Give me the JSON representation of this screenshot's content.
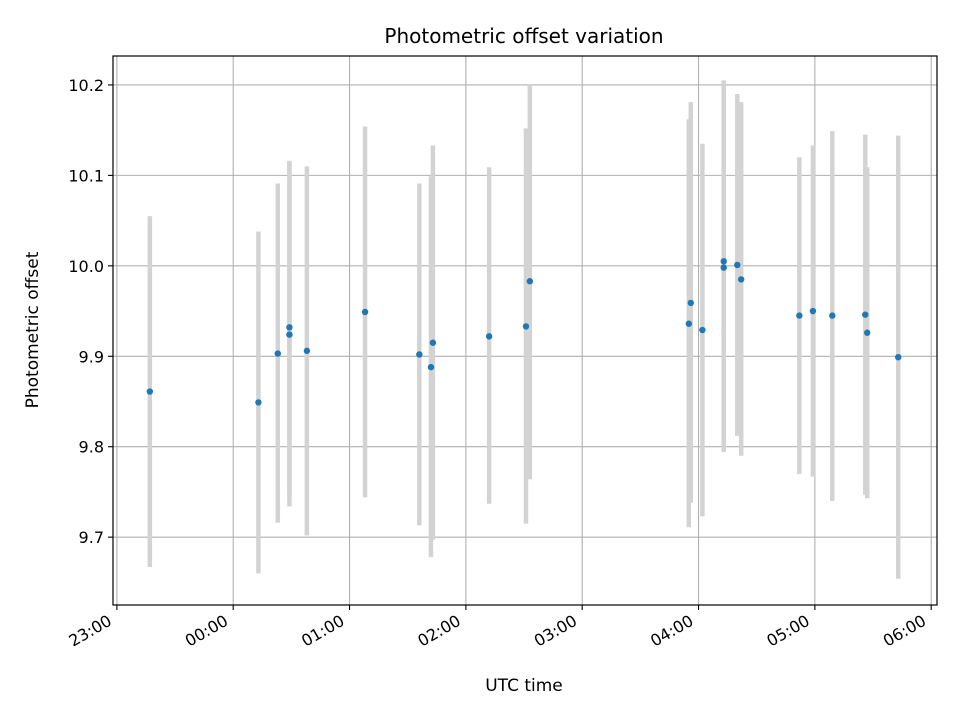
{
  "chart_data": {
    "type": "scatter",
    "title": "Photometric offset variation",
    "xlabel": "UTC time",
    "ylabel": "Photometric offset",
    "x_axis_type": "time",
    "xlim": [
      "22:58",
      "06:03"
    ],
    "ylim": [
      9.625,
      10.232
    ],
    "x_ticks": [
      "23:00",
      "00:00",
      "01:00",
      "02:00",
      "03:00",
      "04:00",
      "05:00",
      "06:00"
    ],
    "y_ticks": [
      9.7,
      9.8,
      9.9,
      10.0,
      10.1,
      10.2
    ],
    "grid": true,
    "legend": "none",
    "colors": {
      "marker": "#1f77b4",
      "errorbar": "#d3d3d3",
      "grid": "#b0b0b0"
    },
    "points": [
      {
        "x": "23:17",
        "y": 9.861,
        "ylow": 9.667,
        "yhigh": 10.055
      },
      {
        "x": "00:13",
        "y": 9.849,
        "ylow": 9.66,
        "yhigh": 10.038
      },
      {
        "x": "00:23",
        "y": 9.903,
        "ylow": 9.716,
        "yhigh": 10.091
      },
      {
        "x": "00:29",
        "y": 9.924,
        "ylow": 9.734,
        "yhigh": 10.114
      },
      {
        "x": "00:29",
        "y": 9.932,
        "ylow": 9.747,
        "yhigh": 10.116
      },
      {
        "x": "00:38",
        "y": 9.906,
        "ylow": 9.702,
        "yhigh": 10.11
      },
      {
        "x": "01:08",
        "y": 9.949,
        "ylow": 9.744,
        "yhigh": 10.154
      },
      {
        "x": "01:36",
        "y": 9.902,
        "ylow": 9.713,
        "yhigh": 10.091
      },
      {
        "x": "01:42",
        "y": 9.888,
        "ylow": 9.678,
        "yhigh": 10.099
      },
      {
        "x": "01:43",
        "y": 9.915,
        "ylow": 9.697,
        "yhigh": 10.133
      },
      {
        "x": "02:12",
        "y": 9.922,
        "ylow": 9.737,
        "yhigh": 10.109
      },
      {
        "x": "02:31",
        "y": 9.933,
        "ylow": 9.715,
        "yhigh": 10.152
      },
      {
        "x": "02:33",
        "y": 9.983,
        "ylow": 9.764,
        "yhigh": 10.201
      },
      {
        "x": "03:55",
        "y": 9.936,
        "ylow": 9.711,
        "yhigh": 10.162
      },
      {
        "x": "03:56",
        "y": 9.959,
        "ylow": 9.738,
        "yhigh": 10.181
      },
      {
        "x": "04:02",
        "y": 9.929,
        "ylow": 9.723,
        "yhigh": 10.135
      },
      {
        "x": "04:13",
        "y": 9.998,
        "ylow": 9.794,
        "yhigh": 10.203
      },
      {
        "x": "04:13",
        "y": 10.005,
        "ylow": 9.805,
        "yhigh": 10.205
      },
      {
        "x": "04:20",
        "y": 10.001,
        "ylow": 9.812,
        "yhigh": 10.19
      },
      {
        "x": "04:22",
        "y": 9.985,
        "ylow": 9.79,
        "yhigh": 10.181
      },
      {
        "x": "04:52",
        "y": 9.945,
        "ylow": 9.77,
        "yhigh": 10.12
      },
      {
        "x": "04:59",
        "y": 9.95,
        "ylow": 9.767,
        "yhigh": 10.133
      },
      {
        "x": "05:09",
        "y": 9.945,
        "ylow": 9.74,
        "yhigh": 10.149
      },
      {
        "x": "05:26",
        "y": 9.946,
        "ylow": 9.747,
        "yhigh": 10.145
      },
      {
        "x": "05:27",
        "y": 9.926,
        "ylow": 9.743,
        "yhigh": 10.109
      },
      {
        "x": "05:43",
        "y": 9.899,
        "ylow": 9.654,
        "yhigh": 10.144
      }
    ]
  }
}
